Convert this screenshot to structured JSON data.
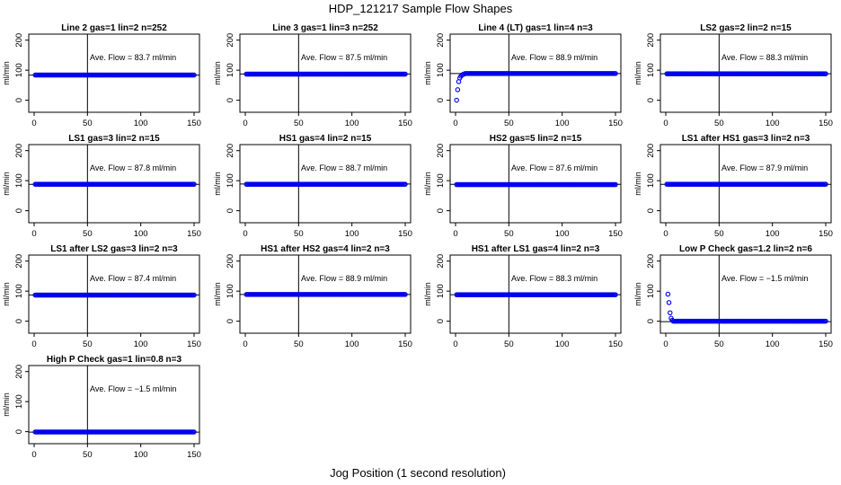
{
  "title": "HDP_121217  Sample Flow Shapes",
  "xlabel": "Jog Position (1 second resolution)",
  "colors": {
    "points": "#0000ee",
    "axes": "#000000"
  },
  "chart_data": [
    {
      "type": "scatter",
      "title": "Line 2 gas=1 lin=2 n=252",
      "ylabel": "ml/min",
      "annotation": "Ave. Flow =  83.7  ml/min",
      "xlim": [
        0,
        150
      ],
      "ylim": [
        -40,
        220
      ],
      "xticks": [
        "0",
        "50",
        "100",
        "150"
      ],
      "yticks": [
        "0",
        "100",
        "200"
      ],
      "hline": 83.7,
      "vline": 50,
      "x_range": [
        1,
        150
      ],
      "series": [
        {
          "values": [
            {
              "x_start": 1,
              "x_end": 150,
              "y": 84
            }
          ]
        }
      ]
    },
    {
      "type": "scatter",
      "title": "Line 3 gas=1 lin=3 n=252",
      "ylabel": "ml/min",
      "annotation": "Ave. Flow =  87.5  ml/min",
      "xlim": [
        0,
        150
      ],
      "ylim": [
        -40,
        220
      ],
      "xticks": [
        "0",
        "50",
        "100",
        "150"
      ],
      "yticks": [
        "0",
        "100",
        "200"
      ],
      "hline": 87.5,
      "vline": 50,
      "series": [
        {
          "values": [
            {
              "x_start": 1,
              "x_end": 150,
              "y": 87
            }
          ]
        }
      ]
    },
    {
      "type": "scatter",
      "title": "Line 4 (LT) gas=1 lin=4 n=3",
      "ylabel": "ml/min",
      "annotation": "Ave. Flow =  88.9  ml/min",
      "xlim": [
        0,
        150
      ],
      "ylim": [
        -40,
        220
      ],
      "xticks": [
        "0",
        "50",
        "100",
        "150"
      ],
      "yticks": [
        "0",
        "100",
        "200"
      ],
      "hline": 88.9,
      "vline": 50,
      "series": [
        {
          "values": [
            {
              "x": 1,
              "y": 0
            },
            {
              "x": 2,
              "y": 35
            },
            {
              "x": 3,
              "y": 62
            },
            {
              "x": 4,
              "y": 74
            },
            {
              "x": 5,
              "y": 80
            },
            {
              "x": 6,
              "y": 84
            },
            {
              "x": 7,
              "y": 86
            },
            {
              "x": 8,
              "y": 87
            },
            {
              "x_start": 9,
              "x_end": 150,
              "y": 89
            }
          ]
        }
      ]
    },
    {
      "type": "scatter",
      "title": "LS2 gas=2 lin=2 n=15",
      "ylabel": "ml/min",
      "annotation": "Ave. Flow =  88.3  ml/min",
      "xlim": [
        0,
        150
      ],
      "ylim": [
        -40,
        220
      ],
      "xticks": [
        "0",
        "50",
        "100",
        "150"
      ],
      "yticks": [
        "0",
        "100",
        "200"
      ],
      "hline": 88.3,
      "vline": 50,
      "series": [
        {
          "values": [
            {
              "x_start": 1,
              "x_end": 150,
              "y": 88
            }
          ]
        }
      ]
    },
    {
      "type": "scatter",
      "title": "LS1 gas=3 lin=2 n=15",
      "ylabel": "ml/min",
      "annotation": "Ave. Flow =  87.8  ml/min",
      "xlim": [
        0,
        150
      ],
      "ylim": [
        -40,
        220
      ],
      "xticks": [
        "0",
        "50",
        "100",
        "150"
      ],
      "yticks": [
        "0",
        "100",
        "200"
      ],
      "hline": 87.8,
      "vline": 50,
      "series": [
        {
          "values": [
            {
              "x_start": 1,
              "x_end": 150,
              "y": 88
            }
          ]
        }
      ]
    },
    {
      "type": "scatter",
      "title": "HS1 gas=4 lin=2 n=15",
      "ylabel": "ml/min",
      "annotation": "Ave. Flow =  88.7  ml/min",
      "xlim": [
        0,
        150
      ],
      "ylim": [
        -40,
        220
      ],
      "xticks": [
        "0",
        "50",
        "100",
        "150"
      ],
      "yticks": [
        "0",
        "100",
        "200"
      ],
      "hline": 88.7,
      "vline": 50,
      "series": [
        {
          "values": [
            {
              "x_start": 1,
              "x_end": 150,
              "y": 88
            }
          ]
        }
      ]
    },
    {
      "type": "scatter",
      "title": "HS2 gas=5 lin=2 n=15",
      "ylabel": "ml/min",
      "annotation": "Ave. Flow =  87.6  ml/min",
      "xlim": [
        0,
        150
      ],
      "ylim": [
        -40,
        220
      ],
      "xticks": [
        "0",
        "50",
        "100",
        "150"
      ],
      "yticks": [
        "0",
        "100",
        "200"
      ],
      "hline": 87.6,
      "vline": 50,
      "series": [
        {
          "values": [
            {
              "x_start": 1,
              "x_end": 150,
              "y": 87
            }
          ]
        }
      ]
    },
    {
      "type": "scatter",
      "title": "LS1 after HS1 gas=3 lin=2 n=3",
      "ylabel": "ml/min",
      "annotation": "Ave. Flow =  87.9  ml/min",
      "xlim": [
        0,
        150
      ],
      "ylim": [
        -40,
        220
      ],
      "xticks": [
        "0",
        "50",
        "100",
        "150"
      ],
      "yticks": [
        "0",
        "100",
        "200"
      ],
      "hline": 87.9,
      "vline": 50,
      "series": [
        {
          "values": [
            {
              "x_start": 1,
              "x_end": 150,
              "y": 88
            }
          ]
        }
      ]
    },
    {
      "type": "scatter",
      "title": "LS1 after LS2 gas=3 lin=2 n=3",
      "ylabel": "ml/min",
      "annotation": "Ave. Flow =  87.4  ml/min",
      "xlim": [
        0,
        150
      ],
      "ylim": [
        -40,
        220
      ],
      "xticks": [
        "0",
        "50",
        "100",
        "150"
      ],
      "yticks": [
        "0",
        "100",
        "200"
      ],
      "hline": 87.4,
      "vline": 50,
      "series": [
        {
          "values": [
            {
              "x_start": 1,
              "x_end": 150,
              "y": 87
            }
          ]
        }
      ]
    },
    {
      "type": "scatter",
      "title": "HS1 after HS2 gas=4 lin=2 n=3",
      "ylabel": "ml/min",
      "annotation": "Ave. Flow =  88.9  ml/min",
      "xlim": [
        0,
        150
      ],
      "ylim": [
        -40,
        220
      ],
      "xticks": [
        "0",
        "50",
        "100",
        "150"
      ],
      "yticks": [
        "0",
        "100",
        "200"
      ],
      "hline": 88.9,
      "vline": 50,
      "series": [
        {
          "values": [
            {
              "x_start": 1,
              "x_end": 150,
              "y": 89
            }
          ]
        }
      ]
    },
    {
      "type": "scatter",
      "title": "HS1 after LS1 gas=4 lin=2 n=3",
      "ylabel": "ml/min",
      "annotation": "Ave. Flow =  88.3  ml/min",
      "xlim": [
        0,
        150
      ],
      "ylim": [
        -40,
        220
      ],
      "xticks": [
        "0",
        "50",
        "100",
        "150"
      ],
      "yticks": [
        "0",
        "100",
        "200"
      ],
      "hline": 88.3,
      "vline": 50,
      "series": [
        {
          "values": [
            {
              "x_start": 1,
              "x_end": 150,
              "y": 88
            }
          ]
        }
      ]
    },
    {
      "type": "scatter",
      "title": "Low P Check gas=1.2 lin=2 n=6",
      "ylabel": "ml/min",
      "annotation": "Ave. Flow =  −1.5  ml/min",
      "xlim": [
        0,
        150
      ],
      "ylim": [
        -40,
        220
      ],
      "xticks": [
        "0",
        "50",
        "100",
        "150"
      ],
      "yticks": [
        "0",
        "100",
        "200"
      ],
      "hline": -1.5,
      "vline": 50,
      "series": [
        {
          "values": [
            {
              "x": 2,
              "y": 90
            },
            {
              "x": 3,
              "y": 62
            },
            {
              "x": 4,
              "y": 28
            },
            {
              "x": 5,
              "y": 10
            },
            {
              "x": 6,
              "y": 3
            },
            {
              "x_start": 7,
              "x_end": 150,
              "y": 0
            }
          ]
        }
      ]
    },
    {
      "type": "scatter",
      "title": "High P Check gas=1 lin=0.8 n=3",
      "ylabel": "ml/min",
      "annotation": "Ave. Flow =  −1.5  ml/min",
      "xlim": [
        0,
        150
      ],
      "ylim": [
        -40,
        220
      ],
      "xticks": [
        "0",
        "50",
        "100",
        "150"
      ],
      "yticks": [
        "0",
        "100",
        "200"
      ],
      "hline": -1.5,
      "vline": 50,
      "series": [
        {
          "values": [
            {
              "x_start": 1,
              "x_end": 150,
              "y": -1
            }
          ]
        }
      ]
    }
  ]
}
